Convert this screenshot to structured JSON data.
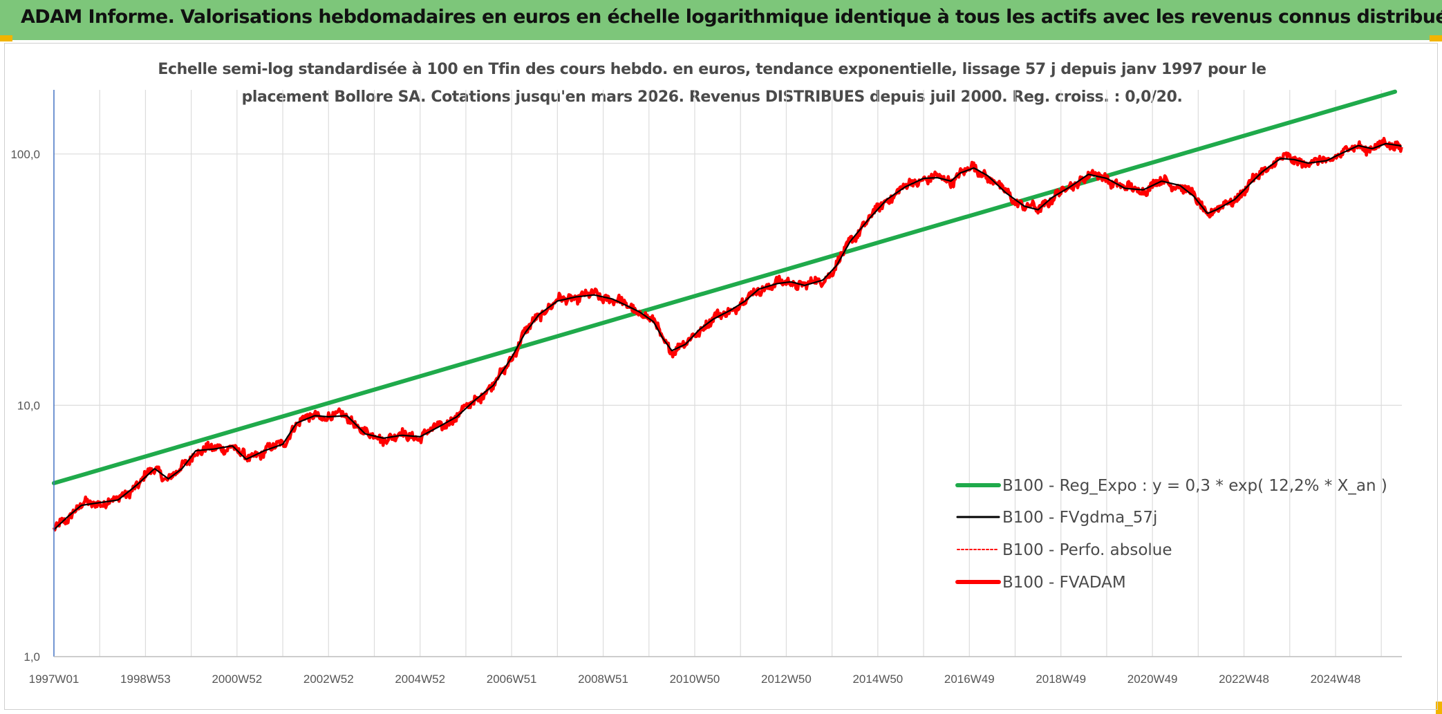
{
  "header": {
    "title": "ADAM Informe. Valorisations hebdomadaires en euros en échelle logarithmique identique à tous les actifs avec les revenus connus distribués"
  },
  "colors": {
    "banner": "#7dc67a",
    "trend": "#1faa4b",
    "smooth": "#000000",
    "price": "#ff0000",
    "corner": "#f2b400"
  },
  "chart_data": {
    "type": "line",
    "subtitle_lines": [
      "Echelle semi-log standardisée à 100 en Tfin des cours hebdo. en euros, tendance exponentielle, lissage 57 j depuis janv 1997 pour le",
      "placement Bollore SA. Cotations jusqu'en mars 2026. Revenus DISTRIBUES depuis juil 2000. Reg. croiss. : 0,0/20."
    ],
    "y_scale": "log",
    "ylim": [
      1,
      180
    ],
    "y_ticks": [
      {
        "value": 1,
        "label": "1,0"
      },
      {
        "value": 10,
        "label": "10,0"
      },
      {
        "value": 100,
        "label": "100,0"
      }
    ],
    "xlim": [
      1997.0,
      2026.45
    ],
    "x_ticks": [
      {
        "t": 1997.0,
        "label": "1997W01"
      },
      {
        "t": 1999.0,
        "label": "1998W53"
      },
      {
        "t": 2001.0,
        "label": "2000W52"
      },
      {
        "t": 2003.0,
        "label": "2002W52"
      },
      {
        "t": 2005.0,
        "label": "2004W52"
      },
      {
        "t": 2007.0,
        "label": "2006W51"
      },
      {
        "t": 2009.0,
        "label": "2008W51"
      },
      {
        "t": 2011.0,
        "label": "2010W50"
      },
      {
        "t": 2013.0,
        "label": "2012W50"
      },
      {
        "t": 2015.0,
        "label": "2014W50"
      },
      {
        "t": 2017.0,
        "label": "2016W49"
      },
      {
        "t": 2019.0,
        "label": "2018W49"
      },
      {
        "t": 2021.0,
        "label": "2020W49"
      },
      {
        "t": 2023.0,
        "label": "2022W48"
      },
      {
        "t": 2025.0,
        "label": "2024W48"
      }
    ],
    "grid": "vertical-yearly-and-horizontal-decades",
    "legend_position": "bottom-right",
    "series": [
      {
        "name": "B100 - Reg_Expo : y = 0,3 * exp( 12,2% *  X_an )",
        "style": "trend",
        "points": [
          [
            1997.0,
            4.9
          ],
          [
            2026.3,
            177
          ]
        ]
      },
      {
        "name": "B100 - FVgdma_57j",
        "style": "smooth",
        "points": [
          [
            1997.0,
            3.2
          ],
          [
            1997.3,
            3.6
          ],
          [
            1997.6,
            4.0
          ],
          [
            1998.0,
            4.1
          ],
          [
            1998.4,
            4.2
          ],
          [
            1998.8,
            4.8
          ],
          [
            1999.2,
            5.6
          ],
          [
            1999.5,
            5.1
          ],
          [
            1999.8,
            5.6
          ],
          [
            2000.1,
            6.6
          ],
          [
            2000.5,
            6.7
          ],
          [
            2000.9,
            6.9
          ],
          [
            2001.2,
            6.1
          ],
          [
            2001.6,
            6.6
          ],
          [
            2002.0,
            7.0
          ],
          [
            2002.3,
            8.5
          ],
          [
            2002.7,
            9.1
          ],
          [
            2003.0,
            9.0
          ],
          [
            2003.4,
            9.1
          ],
          [
            2003.8,
            7.7
          ],
          [
            2004.2,
            7.4
          ],
          [
            2004.6,
            7.6
          ],
          [
            2005.0,
            7.5
          ],
          [
            2005.4,
            8.2
          ],
          [
            2005.8,
            9.0
          ],
          [
            2006.2,
            10.5
          ],
          [
            2006.6,
            12.0
          ],
          [
            2007.0,
            15.5
          ],
          [
            2007.3,
            19.5
          ],
          [
            2007.6,
            23.0
          ],
          [
            2008.0,
            26.0
          ],
          [
            2008.4,
            27.0
          ],
          [
            2008.8,
            27.5
          ],
          [
            2009.2,
            26.5
          ],
          [
            2009.5,
            25.0
          ],
          [
            2009.8,
            23.5
          ],
          [
            2010.1,
            21.5
          ],
          [
            2010.3,
            18.5
          ],
          [
            2010.5,
            16.5
          ],
          [
            2010.8,
            17.5
          ],
          [
            2011.1,
            20.0
          ],
          [
            2011.4,
            22.0
          ],
          [
            2011.8,
            24.0
          ],
          [
            2012.1,
            26.0
          ],
          [
            2012.4,
            29.0
          ],
          [
            2012.8,
            30.5
          ],
          [
            2013.1,
            31.0
          ],
          [
            2013.4,
            30.0
          ],
          [
            2013.8,
            31.5
          ],
          [
            2014.1,
            36.0
          ],
          [
            2014.4,
            45.0
          ],
          [
            2014.8,
            55.0
          ],
          [
            2015.2,
            66.0
          ],
          [
            2015.6,
            74.0
          ],
          [
            2016.0,
            80.0
          ],
          [
            2016.3,
            80.5
          ],
          [
            2016.6,
            78.0
          ],
          [
            2016.8,
            84.0
          ],
          [
            2017.1,
            88.0
          ],
          [
            2017.4,
            82.0
          ],
          [
            2017.8,
            70.0
          ],
          [
            2018.2,
            62.0
          ],
          [
            2018.5,
            60.0
          ],
          [
            2018.8,
            67.0
          ],
          [
            2019.2,
            74.0
          ],
          [
            2019.6,
            83.0
          ],
          [
            2020.0,
            80.0
          ],
          [
            2020.4,
            73.0
          ],
          [
            2020.8,
            72.0
          ],
          [
            2021.2,
            78.0
          ],
          [
            2021.6,
            75.0
          ],
          [
            2021.9,
            68.0
          ],
          [
            2022.2,
            58.0
          ],
          [
            2022.4,
            60.0
          ],
          [
            2022.8,
            66.0
          ],
          [
            2023.1,
            75.0
          ],
          [
            2023.4,
            85.0
          ],
          [
            2023.8,
            96.0
          ],
          [
            2024.1,
            95.0
          ],
          [
            2024.4,
            92.0
          ],
          [
            2024.8,
            94.0
          ],
          [
            2025.1,
            100.0
          ],
          [
            2025.5,
            108.0
          ],
          [
            2025.8,
            105.0
          ],
          [
            2026.1,
            110.0
          ],
          [
            2026.4,
            108.0
          ],
          [
            2026.45,
            107.0
          ]
        ]
      },
      {
        "name": "B100 - Perfo. absolue",
        "style": "dotted",
        "points": []
      },
      {
        "name": "B100 - FVADAM",
        "style": "price",
        "points": []
      }
    ]
  }
}
